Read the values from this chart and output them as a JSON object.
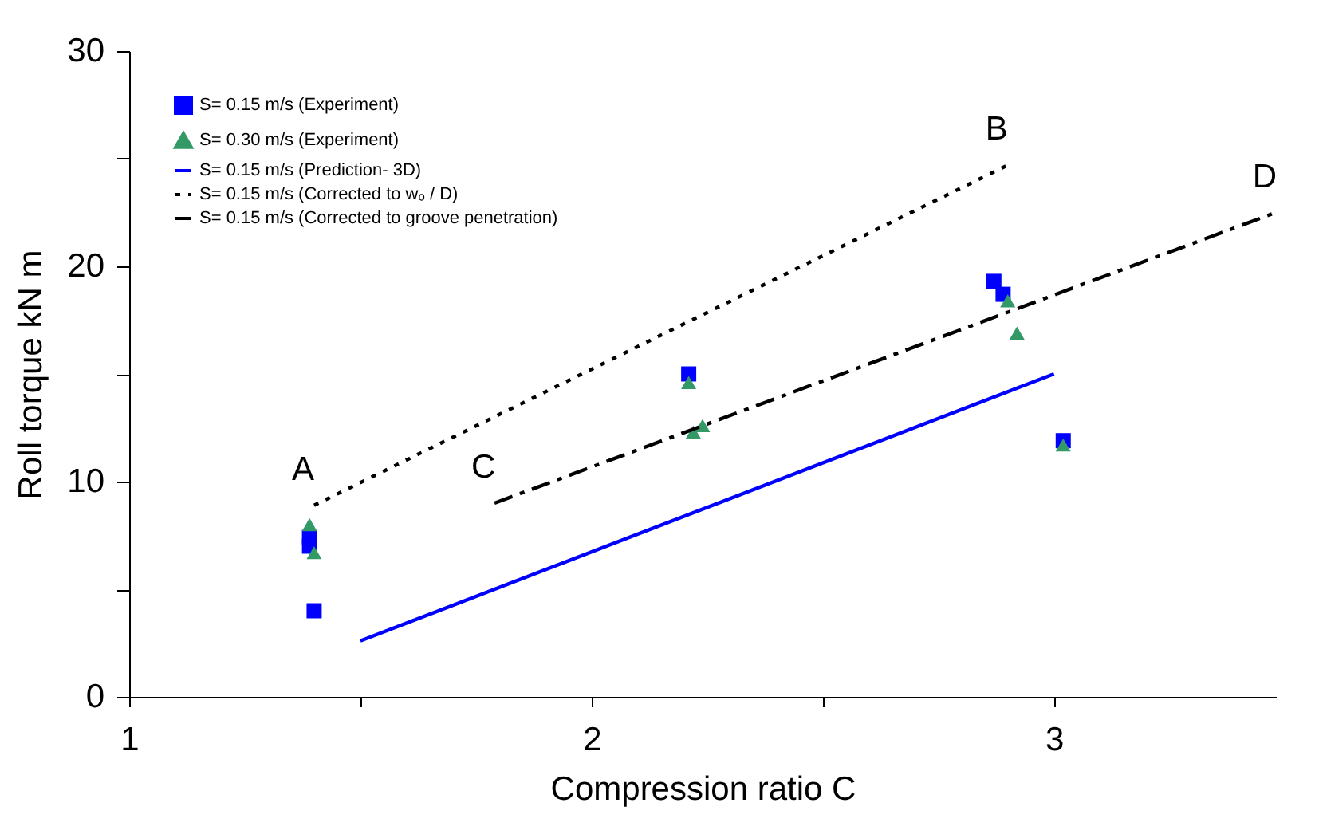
{
  "chart_data": {
    "type": "scatter",
    "xlabel": "Compression ratio C",
    "ylabel": "Roll torque  kN m",
    "xlim": [
      1,
      3.48
    ],
    "xticks": [
      1,
      {
        "value": 1.5,
        "label": null
      },
      2,
      {
        "value": 2.5,
        "label": null
      },
      3
    ],
    "ylim": [
      0,
      30
    ],
    "yticks": [
      0,
      {
        "value": 5,
        "label": null
      },
      10,
      {
        "value": 15,
        "label": null
      },
      20,
      {
        "value": 25,
        "label": null
      },
      30
    ],
    "grid": false,
    "legend": "top left",
    "series": [
      {
        "name": "S= 0.15 m/s (Experiment)",
        "marker": "square",
        "color": "#0000ff",
        "x": [
          1.39,
          1.39,
          1.4,
          2.21,
          2.87,
          2.89,
          3.02
        ],
        "values": [
          7.4,
          7.0,
          4.0,
          15.0,
          19.3,
          18.7,
          11.9
        ]
      },
      {
        "name": "S= 0.30 m/s (Experiment)",
        "marker": "triangle",
        "color": "#339966",
        "x": [
          1.39,
          1.4,
          2.21,
          2.22,
          2.24,
          2.9,
          2.92,
          3.02
        ],
        "values": [
          8.0,
          6.7,
          14.6,
          12.3,
          12.6,
          18.4,
          16.9,
          11.7
        ]
      },
      {
        "name": "S= 0.15 m/s (Prediction- 3D)",
        "type": "line",
        "line_style": "solid",
        "color": "#0000ff",
        "x": [
          1.5,
          3.0
        ],
        "values": [
          2.6,
          15.0
        ]
      },
      {
        "name": "S= 0.15 m/s (Corrected to wₒ / D)",
        "type": "line",
        "line_style": "dotted",
        "color": "#000000",
        "x": [
          1.4,
          2.9
        ],
        "values": [
          8.9,
          24.7
        ]
      },
      {
        "name": "S= 0.15 m/s (Corrected to groove penetration)",
        "type": "line",
        "line_style": "dashed",
        "color": "#000000",
        "x": [
          1.79,
          3.48
        ],
        "values": [
          9.0,
          22.5
        ]
      }
    ],
    "annotations": [
      {
        "text": "A",
        "x": 1.4,
        "y": 8.9
      },
      {
        "text": "B",
        "x": 2.9,
        "y": 24.7
      },
      {
        "text": "C",
        "x": 1.79,
        "y": 9.0
      },
      {
        "text": "D",
        "x": 3.48,
        "y": 22.5
      }
    ]
  }
}
